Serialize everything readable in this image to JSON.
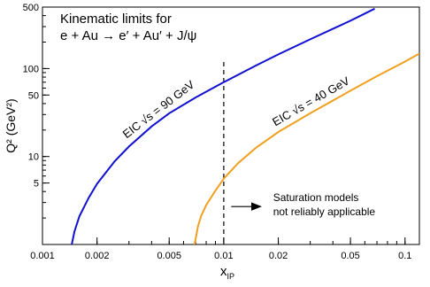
{
  "chart_data": {
    "type": "line",
    "title": [
      "Kinematic limits for",
      "e + Au → e′ + Au′ + J/ψ"
    ],
    "xlabel": "x",
    "xlabel_sub": "IP",
    "ylabel": "Q² (GeV²)",
    "x_scale": "log",
    "y_scale": "log",
    "xlim": [
      0.001,
      0.12
    ],
    "ylim": [
      1,
      500
    ],
    "x_ticks": [
      0.001,
      0.002,
      0.005,
      0.01,
      0.02,
      0.05,
      0.1
    ],
    "x_tick_labels": [
      "0.001",
      "0.002",
      "0.005",
      "0.01",
      "0.02",
      "0.05",
      "0.1"
    ],
    "y_ticks": [
      5,
      10,
      50,
      100,
      500
    ],
    "y_tick_labels": [
      "5",
      "10",
      "50",
      "100",
      "500"
    ],
    "grid": false,
    "series": [
      {
        "name": "EIC √s = 90 GeV",
        "color": "#1010d0",
        "points": [
          [
            0.00145,
            1.0
          ],
          [
            0.0015,
            1.4
          ],
          [
            0.0016,
            2.1
          ],
          [
            0.0018,
            3.4
          ],
          [
            0.002,
            4.9
          ],
          [
            0.0025,
            8.8
          ],
          [
            0.003,
            13.0
          ],
          [
            0.004,
            22.0
          ],
          [
            0.005,
            31.0
          ],
          [
            0.007,
            47.0
          ],
          [
            0.01,
            70.0
          ],
          [
            0.015,
            108.0
          ],
          [
            0.02,
            145.0
          ],
          [
            0.03,
            215.0
          ],
          [
            0.05,
            350.0
          ],
          [
            0.068,
            480.0
          ]
        ]
      },
      {
        "name": "EIC √s = 40 GeV",
        "color": "#f0a020",
        "points": [
          [
            0.0069,
            1.0
          ],
          [
            0.0072,
            1.6
          ],
          [
            0.0075,
            2.1
          ],
          [
            0.008,
            2.8
          ],
          [
            0.009,
            4.1
          ],
          [
            0.01,
            5.6
          ],
          [
            0.012,
            8.4
          ],
          [
            0.015,
            12.5
          ],
          [
            0.02,
            19.0
          ],
          [
            0.03,
            31.0
          ],
          [
            0.05,
            56.0
          ],
          [
            0.07,
            82.0
          ],
          [
            0.1,
            120.0
          ],
          [
            0.12,
            148.0
          ]
        ]
      }
    ],
    "reference_line": {
      "x": 0.01,
      "style": "dashed"
    },
    "annotation": {
      "lines": [
        "Saturation models",
        "not reliably applicable"
      ],
      "arrow": "right",
      "arrow_from_x": 0.011,
      "arrow_to_x": 0.016,
      "arrow_y": 2.7
    }
  }
}
